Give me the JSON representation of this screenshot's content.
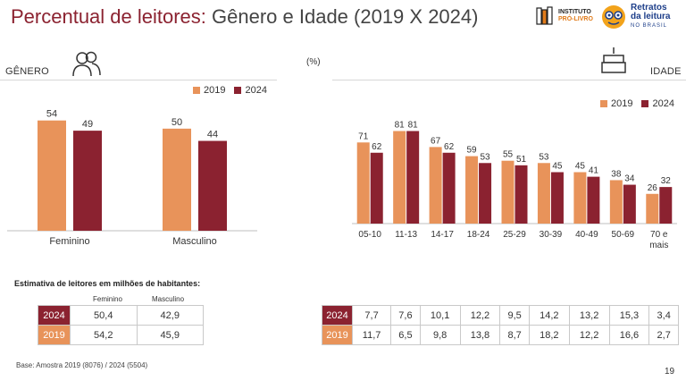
{
  "title": {
    "part1": "Percentual de leitores:",
    "part2": " Gênero e Idade (2019 X 2024)"
  },
  "logos": {
    "instituto_line1": "INSTITUTO",
    "instituto_line2": "PRÓ-LIVRO",
    "retratos_line1": "Retratos",
    "retratos_line2": "da leitura",
    "retratos_line3": "NO BRASIL"
  },
  "sections": {
    "gender": "GÊNERO",
    "age": "IDADE",
    "percent": "(%)"
  },
  "colors": {
    "y2019": "#e8935a",
    "y2024": "#8b2230"
  },
  "chart_data": [
    {
      "type": "bar",
      "categories": [
        "Feminino",
        "Masculino"
      ],
      "series": [
        {
          "name": "2019",
          "values": [
            54,
            50
          ]
        },
        {
          "name": "2024",
          "values": [
            49,
            44
          ]
        }
      ],
      "ylim": [
        0,
        60
      ],
      "legend": "top-right"
    },
    {
      "type": "bar",
      "categories": [
        "05-10",
        "11-13",
        "14-17",
        "18-24",
        "25-29",
        "30-39",
        "40-49",
        "50-69",
        "70 e mais"
      ],
      "series": [
        {
          "name": "2019",
          "values": [
            71,
            81,
            67,
            59,
            55,
            53,
            45,
            38,
            26
          ]
        },
        {
          "name": "2024",
          "values": [
            62,
            81,
            62,
            53,
            51,
            45,
            41,
            34,
            32
          ]
        }
      ],
      "ylim": [
        0,
        90
      ],
      "legend": "top-right"
    }
  ],
  "estimate": {
    "title": "Estimativa de leitores em milhões de habitantes:",
    "gender_headers": [
      "Feminino",
      "Masculino"
    ],
    "gender_rows": [
      {
        "year": "2024",
        "values": [
          "50,4",
          "42,9"
        ]
      },
      {
        "year": "2019",
        "values": [
          "54,2",
          "45,9"
        ]
      }
    ],
    "age_rows": [
      {
        "year": "2024",
        "values": [
          "7,7",
          "7,6",
          "10,1",
          "12,2",
          "9,5",
          "14,2",
          "13,2",
          "15,3",
          "3,4"
        ]
      },
      {
        "year": "2019",
        "values": [
          "11,7",
          "6,5",
          "9,8",
          "13,8",
          "8,7",
          "18,2",
          "12,2",
          "16,6",
          "2,7"
        ]
      }
    ]
  },
  "footer": {
    "base": "Base: Amostra 2019 (8076) / 2024 (5504)",
    "page": "19"
  }
}
